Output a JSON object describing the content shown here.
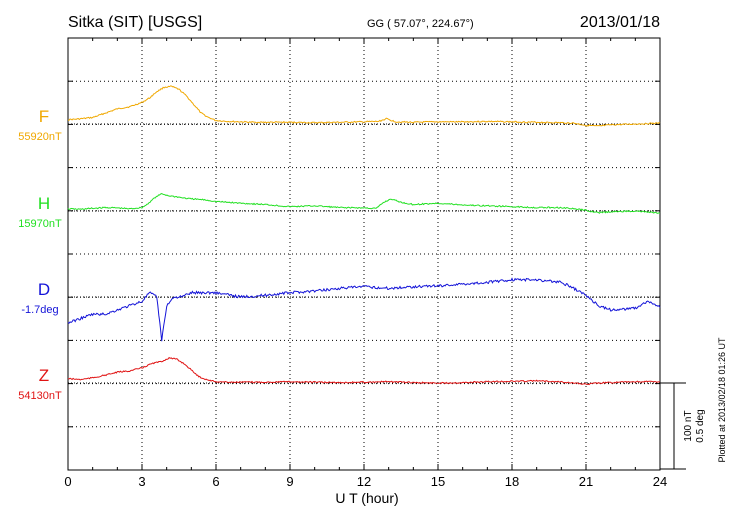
{
  "header": {
    "station": "Sitka (SIT)  [USGS]",
    "coords": "GG ( 57.07°, 224.67°)",
    "date": "2013/01/18"
  },
  "footer": {
    "plotted": "Plotted at 2013/02/18 01:26 UT",
    "scale_nt": "100 nT",
    "scale_deg": "0.5 deg"
  },
  "chart_data": {
    "type": "line",
    "xlabel": "U T (hour)",
    "xlim": [
      0,
      24
    ],
    "x_ticks": [
      "0",
      "3",
      "6",
      "9",
      "12",
      "15",
      "18",
      "21",
      "24"
    ],
    "scale": {
      "nt_per_division": 100,
      "deg_per_division": 0.5
    },
    "grid": true,
    "series": [
      {
        "name": "F",
        "baseline_label": "55920nT",
        "color": "#f0a800",
        "baseline_offset_div": 1,
        "x": [
          0,
          0.5,
          1,
          1.5,
          2,
          2.5,
          3,
          3.3,
          3.6,
          3.9,
          4.2,
          4.5,
          4.8,
          5.1,
          5.4,
          5.7,
          6,
          6.5,
          7,
          7.5,
          8,
          9,
          10,
          11,
          12,
          12.6,
          12.9,
          13.3,
          14,
          15,
          16,
          17,
          18,
          19,
          20,
          20.5,
          21,
          21.5,
          22,
          23,
          24
        ],
        "values": [
          10,
          12,
          15,
          25,
          35,
          40,
          50,
          60,
          75,
          85,
          87,
          80,
          65,
          45,
          25,
          15,
          8,
          6,
          5,
          4,
          4,
          4,
          3,
          4,
          5,
          6,
          12,
          5,
          4,
          5,
          5,
          6,
          5,
          4,
          3,
          2,
          -3,
          -5,
          -2,
          0,
          2
        ]
      },
      {
        "name": "H",
        "baseline_label": "15970nT",
        "color": "#22e022",
        "baseline_offset_div": 0,
        "x": [
          0,
          0.5,
          1,
          1.5,
          2,
          2.5,
          3,
          3.2,
          3.5,
          3.8,
          4.1,
          4.4,
          4.7,
          5,
          5.5,
          6,
          7,
          8,
          9,
          10,
          11,
          12,
          12.5,
          12.8,
          13.1,
          13.5,
          14,
          15,
          16,
          17,
          18,
          19,
          20,
          20.5,
          21,
          21.5,
          22,
          23,
          24
        ],
        "values": [
          5,
          4,
          6,
          8,
          7,
          5,
          8,
          15,
          30,
          40,
          35,
          33,
          30,
          28,
          26,
          22,
          18,
          15,
          10,
          12,
          8,
          7,
          6,
          20,
          28,
          20,
          15,
          18,
          14,
          12,
          10,
          8,
          8,
          5,
          2,
          -4,
          -2,
          0,
          -5
        ]
      },
      {
        "name": "D",
        "baseline_label": "-1.7deg",
        "color": "#1414d8",
        "baseline_offset_div": 0,
        "x": [
          0,
          0.5,
          1,
          1.5,
          2,
          2.5,
          3,
          3.3,
          3.6,
          3.8,
          4,
          4.3,
          4.6,
          5,
          5.5,
          6,
          7,
          8,
          9,
          10,
          11,
          12,
          13,
          14,
          15,
          16,
          17,
          18,
          19,
          20,
          20.5,
          21,
          21.5,
          22,
          23,
          23.5,
          24
        ],
        "values": [
          -0.3,
          -0.25,
          -0.2,
          -0.2,
          -0.15,
          -0.1,
          -0.05,
          0.05,
          0.0,
          -0.5,
          -0.1,
          0.0,
          0.0,
          0.05,
          0.05,
          0.05,
          0.0,
          0.02,
          0.05,
          0.07,
          0.1,
          0.12,
          0.1,
          0.12,
          0.13,
          0.15,
          0.17,
          0.2,
          0.2,
          0.17,
          0.1,
          0.02,
          -0.1,
          -0.15,
          -0.13,
          -0.05,
          -0.12
        ]
      },
      {
        "name": "Z",
        "baseline_label": "54130nT",
        "color": "#e01414",
        "baseline_offset_div": 0,
        "x": [
          0,
          0.5,
          1,
          1.5,
          2,
          2.5,
          3,
          3.4,
          3.8,
          4.1,
          4.4,
          4.7,
          5,
          5.3,
          5.6,
          6,
          6.5,
          7,
          8,
          9,
          10,
          11,
          12,
          13,
          14,
          15,
          16,
          17,
          18,
          19,
          20,
          20.5,
          21,
          21.5,
          22,
          23,
          24
        ],
        "values": [
          10,
          8,
          12,
          18,
          25,
          28,
          35,
          45,
          50,
          58,
          55,
          45,
          30,
          15,
          8,
          3,
          2,
          2,
          2,
          3,
          2,
          1,
          2,
          3,
          1,
          0,
          1,
          3,
          4,
          5,
          3,
          0,
          -3,
          0,
          1,
          3,
          3
        ]
      }
    ]
  }
}
